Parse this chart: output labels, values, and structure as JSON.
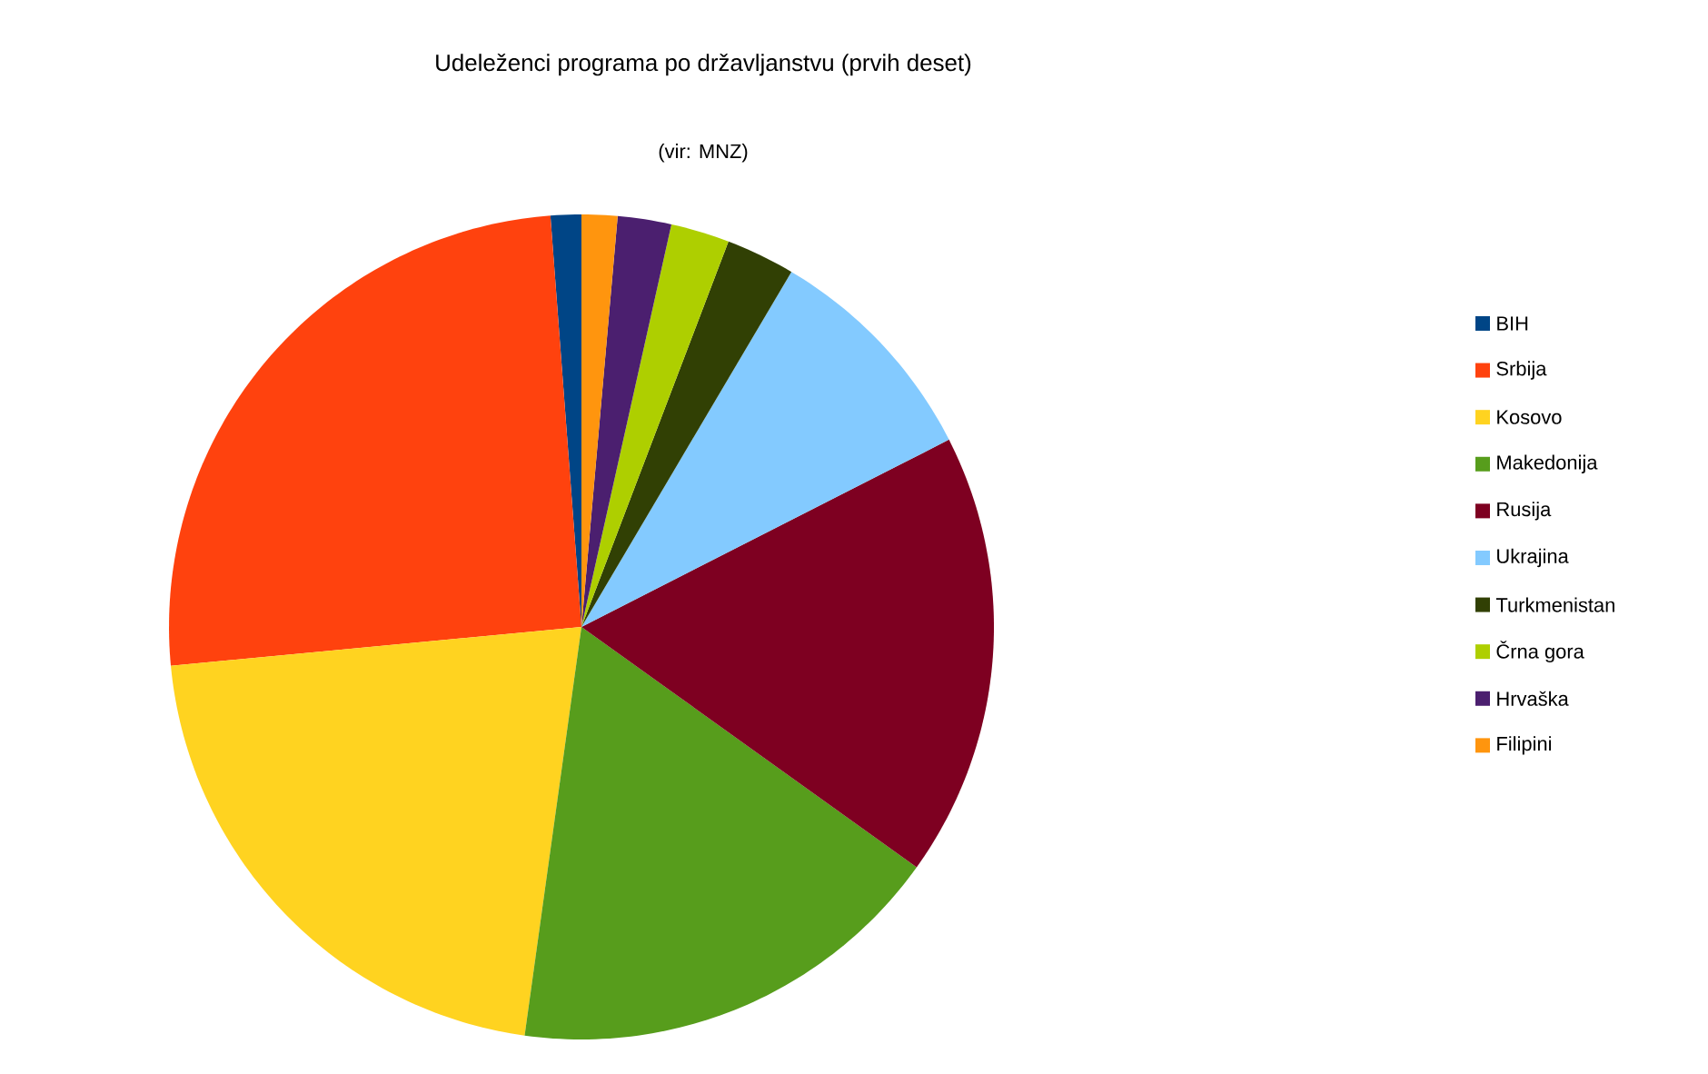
{
  "chart_data": {
    "type": "pie",
    "title": "Udeleženci programa po državljanstvu (prvih deset)",
    "subtitle": "(vir: MNZ)",
    "categories": [
      "BIH",
      "Srbija",
      "Kosovo",
      "Makedonija",
      "Rusija",
      "Ukrajina",
      "Turkmenistan",
      "Črna gora",
      "Hrvaška",
      "Filipini"
    ],
    "values": [
      1.2,
      25.3,
      21.3,
      17.3,
      17.4,
      9.0,
      2.7,
      2.3,
      2.1,
      1.4
    ],
    "colors": [
      "#004586",
      "#ff420e",
      "#ffd320",
      "#579d1c",
      "#7e0021",
      "#83caff",
      "#314004",
      "#aecf00",
      "#4b1f6f",
      "#ff950e"
    ],
    "legend": "right"
  }
}
